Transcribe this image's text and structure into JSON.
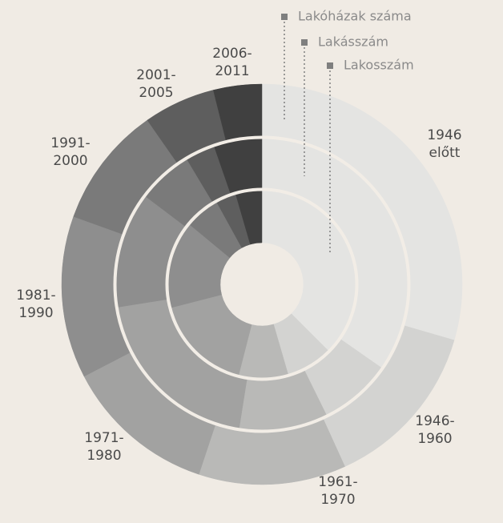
{
  "chart_data": {
    "type": "multi-ring-donut",
    "categories": [
      "1946 előtt",
      "1946-1960",
      "1961-1970",
      "1971-1980",
      "1981-1990",
      "1991-2000",
      "2001-2005",
      "2006-2011"
    ],
    "colors": [
      "#e4e4e2",
      "#d3d3d1",
      "#b9b9b7",
      "#a2a2a1",
      "#8e8e8e",
      "#7a7a7a",
      "#5e5e5e",
      "#404040"
    ],
    "series": [
      {
        "name": "Lakóházak száma",
        "values": [
          29.5,
          13.7,
          11.9,
          12.3,
          13.1,
          9.8,
          5.8,
          3.9
        ]
      },
      {
        "name": "Lakásszám",
        "values": [
          34.7,
          8,
          9.8,
          20,
          12.8,
          6.1,
          3.3,
          5.3
        ]
      },
      {
        "name": "Lakosszám",
        "values": [
          37.5,
          8,
          8.5,
          17,
          15,
          6,
          3.5,
          4.5
        ]
      }
    ],
    "legend_color": "#7f7f7f"
  }
}
